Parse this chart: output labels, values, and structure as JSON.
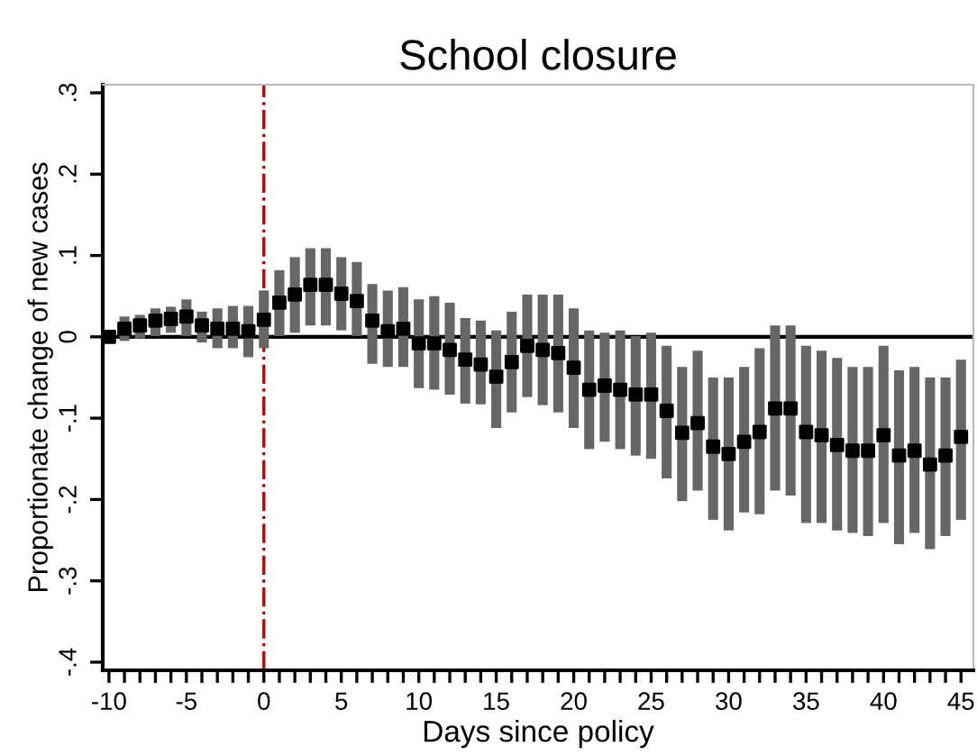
{
  "chart_data": {
    "type": "scatter",
    "title": "School closure",
    "xlabel": "Days since policy",
    "ylabel": "Proportionate change of new cases",
    "x": [
      -10,
      -9,
      -8,
      -7,
      -6,
      -5,
      -4,
      -3,
      -2,
      -1,
      0,
      1,
      2,
      3,
      4,
      5,
      6,
      7,
      8,
      9,
      10,
      11,
      12,
      13,
      14,
      15,
      16,
      17,
      18,
      19,
      20,
      21,
      22,
      23,
      24,
      25,
      26,
      27,
      28,
      29,
      30,
      31,
      32,
      33,
      34,
      35,
      36,
      37,
      38,
      39,
      40,
      41,
      42,
      43,
      44,
      45
    ],
    "series": [
      {
        "color": "#000000",
        "marker": "square",
        "values": [
          0.0,
          0.01,
          0.014,
          0.02,
          0.022,
          0.025,
          0.014,
          0.01,
          0.01,
          0.007,
          0.021,
          0.042,
          0.052,
          0.064,
          0.064,
          0.053,
          0.044,
          0.02,
          0.007,
          0.01,
          -0.008,
          -0.008,
          -0.016,
          -0.028,
          -0.034,
          -0.049,
          -0.031,
          -0.011,
          -0.016,
          -0.02,
          -0.038,
          -0.065,
          -0.06,
          -0.065,
          -0.071,
          -0.071,
          -0.091,
          -0.118,
          -0.106,
          -0.135,
          -0.144,
          -0.129,
          -0.117,
          -0.088,
          -0.088,
          -0.117,
          -0.121,
          -0.133,
          -0.14,
          -0.14,
          -0.121,
          -0.146,
          -0.14,
          -0.157,
          -0.146,
          -0.123
        ],
        "errors": [
          [
            -0.003,
            0.003
          ],
          [
            -0.005,
            0.025
          ],
          [
            -0.002,
            0.027
          ],
          [
            0.001,
            0.035
          ],
          [
            0.005,
            0.037
          ],
          [
            0.001,
            0.046
          ],
          [
            -0.007,
            0.031
          ],
          [
            -0.014,
            0.035
          ],
          [
            -0.014,
            0.038
          ],
          [
            -0.025,
            0.038
          ],
          [
            -0.014,
            0.057
          ],
          [
            0.001,
            0.082
          ],
          [
            0.005,
            0.098
          ],
          [
            0.014,
            0.109
          ],
          [
            0.014,
            0.109
          ],
          [
            0.008,
            0.098
          ],
          [
            0.001,
            0.092
          ],
          [
            -0.033,
            0.065
          ],
          [
            -0.037,
            0.057
          ],
          [
            -0.037,
            0.061
          ],
          [
            -0.063,
            0.046
          ],
          [
            -0.065,
            0.05
          ],
          [
            -0.071,
            0.042
          ],
          [
            -0.082,
            0.023
          ],
          [
            -0.083,
            0.02
          ],
          [
            -0.112,
            0.008
          ],
          [
            -0.093,
            0.031
          ],
          [
            -0.074,
            0.052
          ],
          [
            -0.084,
            0.052
          ],
          [
            -0.093,
            0.052
          ],
          [
            -0.112,
            0.035
          ],
          [
            -0.138,
            0.008
          ],
          [
            -0.129,
            0.005
          ],
          [
            -0.138,
            0.008
          ],
          [
            -0.146,
            0.001
          ],
          [
            -0.15,
            0.005
          ],
          [
            -0.174,
            -0.011
          ],
          [
            -0.202,
            -0.037
          ],
          [
            -0.189,
            -0.017
          ],
          [
            -0.225,
            -0.05
          ],
          [
            -0.238,
            -0.05
          ],
          [
            -0.216,
            -0.037
          ],
          [
            -0.218,
            -0.014
          ],
          [
            -0.189,
            0.014
          ],
          [
            -0.195,
            0.014
          ],
          [
            -0.229,
            -0.011
          ],
          [
            -0.229,
            -0.017
          ],
          [
            -0.238,
            -0.026
          ],
          [
            -0.241,
            -0.037
          ],
          [
            -0.245,
            -0.037
          ],
          [
            -0.229,
            -0.011
          ],
          [
            -0.255,
            -0.041
          ],
          [
            -0.241,
            -0.037
          ],
          [
            -0.261,
            -0.05
          ],
          [
            -0.245,
            -0.05
          ],
          [
            -0.225,
            -0.028
          ]
        ]
      }
    ],
    "xlim": [
      -10.4,
      45.8
    ],
    "ylim": [
      -0.41,
      0.31
    ],
    "xticks": [
      -10,
      {
        "value": -9,
        "label": null
      },
      {
        "value": -8,
        "label": null
      },
      {
        "value": -7,
        "label": null
      },
      {
        "value": -6,
        "label": null
      },
      -5,
      {
        "value": -4,
        "label": null
      },
      {
        "value": -3,
        "label": null
      },
      {
        "value": -2,
        "label": null
      },
      {
        "value": -1,
        "label": null
      },
      0,
      {
        "value": 1,
        "label": null
      },
      {
        "value": 2,
        "label": null
      },
      {
        "value": 3,
        "label": null
      },
      {
        "value": 4,
        "label": null
      },
      5,
      {
        "value": 6,
        "label": null
      },
      {
        "value": 7,
        "label": null
      },
      {
        "value": 8,
        "label": null
      },
      {
        "value": 9,
        "label": null
      },
      10,
      {
        "value": 11,
        "label": null
      },
      {
        "value": 12,
        "label": null
      },
      {
        "value": 13,
        "label": null
      },
      {
        "value": 14,
        "label": null
      },
      15,
      {
        "value": 16,
        "label": null
      },
      {
        "value": 17,
        "label": null
      },
      {
        "value": 18,
        "label": null
      },
      {
        "value": 19,
        "label": null
      },
      20,
      {
        "value": 21,
        "label": null
      },
      {
        "value": 22,
        "label": null
      },
      {
        "value": 23,
        "label": null
      },
      {
        "value": 24,
        "label": null
      },
      25,
      {
        "value": 26,
        "label": null
      },
      {
        "value": 27,
        "label": null
      },
      {
        "value": 28,
        "label": null
      },
      {
        "value": 29,
        "label": null
      },
      30,
      {
        "value": 31,
        "label": null
      },
      {
        "value": 32,
        "label": null
      },
      {
        "value": 33,
        "label": null
      },
      {
        "value": 34,
        "label": null
      },
      35,
      {
        "value": 36,
        "label": null
      },
      {
        "value": 37,
        "label": null
      },
      {
        "value": 38,
        "label": null
      },
      {
        "value": 39,
        "label": null
      },
      40,
      {
        "value": 41,
        "label": null
      },
      {
        "value": 42,
        "label": null
      },
      {
        "value": 43,
        "label": null
      },
      {
        "value": 44,
        "label": null
      },
      45
    ],
    "yticks": [
      {
        "value": -0.4,
        "label": "-.4"
      },
      {
        "value": -0.3,
        "label": "-.3"
      },
      {
        "value": -0.2,
        "label": "-.2"
      },
      {
        "value": -0.1,
        "label": "-.1"
      },
      0,
      {
        "value": 0.1,
        "label": ".1"
      },
      {
        "value": 0.2,
        "label": ".2"
      },
      {
        "value": 0.3,
        "label": ".3"
      }
    ],
    "ref_lines": [
      {
        "axis": "y",
        "value": 0,
        "color": "#000000",
        "line_style": "solid"
      },
      {
        "axis": "x",
        "value": 0,
        "color": "#c00000",
        "line_style": "dashdot"
      }
    ],
    "grid": false,
    "legend": false
  }
}
